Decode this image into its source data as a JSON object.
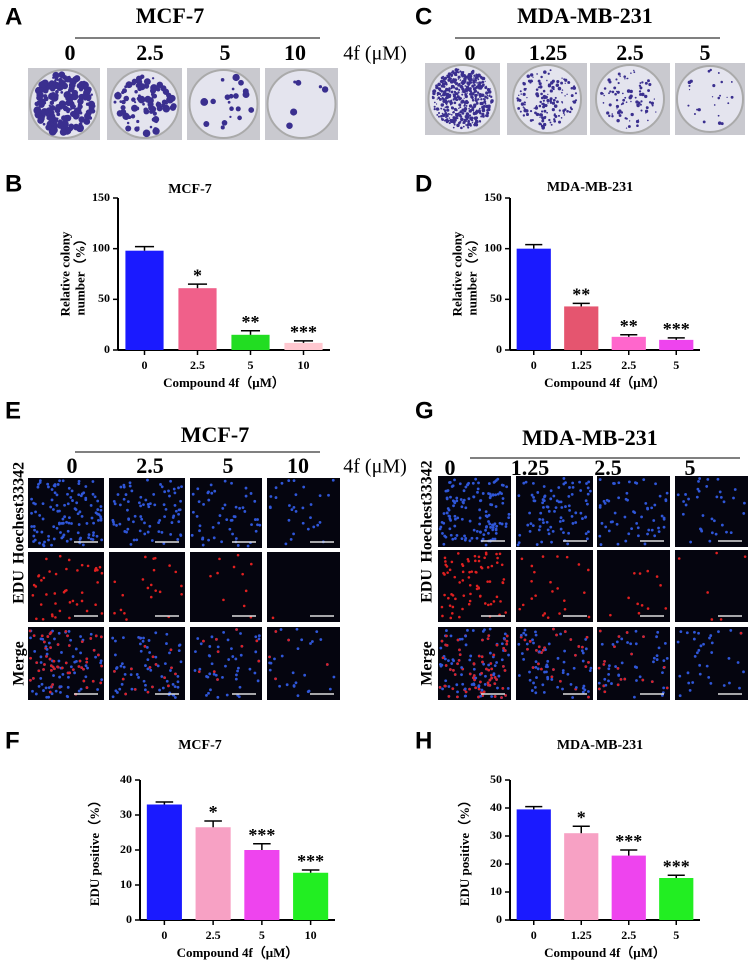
{
  "panels": [
    {
      "label": "A",
      "title": "MCF-7",
      "doses": [
        "0",
        "2.5",
        "5",
        "10"
      ],
      "unit": "4f (μM)"
    },
    {
      "label": "C",
      "title": "MDA-MB-231",
      "doses": [
        "0",
        "1.25",
        "2.5",
        "5"
      ]
    },
    {
      "label": "E",
      "title": "MCF-7",
      "doses": [
        "0",
        "2.5",
        "5",
        "10"
      ],
      "unit": "4f (μM)",
      "rows": [
        "Hoechest33342",
        "EDU",
        "Merge"
      ]
    },
    {
      "label": "G",
      "title": "MDA-MB-231",
      "doses": [
        "0",
        "1.25",
        "2.5",
        "5"
      ],
      "rows": [
        "Hoechest33342",
        "EDU",
        "Merge"
      ]
    }
  ],
  "chart_data": [
    {
      "type": "bar",
      "panel_label": "B",
      "title": "MCF-7",
      "ylabel": [
        "Relative colony",
        "number（%）"
      ],
      "xlabel": "Compound 4f（μM）",
      "categories": [
        "0",
        "2.5",
        "5",
        "10"
      ],
      "values": [
        98,
        61,
        15,
        7
      ],
      "errors": [
        4,
        4,
        4,
        2
      ],
      "annotations": [
        null,
        "*",
        "**",
        "***"
      ],
      "colors": [
        "#1a1aff",
        "#f0608a",
        "#22dd22",
        "#ffc8d0"
      ],
      "ylim": [
        0,
        150
      ],
      "yticks": [
        0,
        50,
        100,
        150
      ]
    },
    {
      "type": "bar",
      "panel_label": "D",
      "title": "MDA-MB-231",
      "ylabel": [
        "Relative colony",
        "number（%）"
      ],
      "xlabel": "Compound 4f（μM）",
      "categories": [
        "0",
        "1.25",
        "2.5",
        "5"
      ],
      "values": [
        100,
        43,
        13,
        10
      ],
      "errors": [
        4,
        3,
        2,
        2
      ],
      "annotations": [
        null,
        "**",
        "**",
        "***"
      ],
      "colors": [
        "#1a1aff",
        "#e5556f",
        "#ff66cc",
        "#ee44ee"
      ],
      "ylim": [
        0,
        150
      ],
      "yticks": [
        0,
        50,
        100,
        150
      ]
    },
    {
      "type": "bar",
      "panel_label": "F",
      "title": "MCF-7",
      "ylabel": [
        "EDU positive（%）"
      ],
      "xlabel": "Compound 4f（μM）",
      "categories": [
        "0",
        "2.5",
        "5",
        "10"
      ],
      "values": [
        33,
        26.5,
        20,
        13.5
      ],
      "errors": [
        0.7,
        1.8,
        1.8,
        0.8
      ],
      "annotations": [
        null,
        "*",
        "***",
        "***"
      ],
      "colors": [
        "#1a1aff",
        "#f7a1c4",
        "#ee44ee",
        "#22ee22"
      ],
      "ylim": [
        0,
        40
      ],
      "yticks": [
        0,
        10,
        20,
        30,
        40
      ]
    },
    {
      "type": "bar",
      "panel_label": "H",
      "title": "MDA-MB-231",
      "ylabel": [
        "EDU positive（%）"
      ],
      "xlabel": "Compound 4f（μM）",
      "categories": [
        "0",
        "1.25",
        "2.5",
        "5"
      ],
      "values": [
        39.5,
        31,
        23,
        15
      ],
      "errors": [
        1,
        2.5,
        2,
        1
      ],
      "annotations": [
        null,
        "*",
        "***",
        "***"
      ],
      "colors": [
        "#1a1aff",
        "#f7a1c4",
        "#ee44ee",
        "#22ee22"
      ],
      "ylim": [
        0,
        50
      ],
      "yticks": [
        0,
        10,
        20,
        30,
        40,
        50
      ]
    }
  ]
}
